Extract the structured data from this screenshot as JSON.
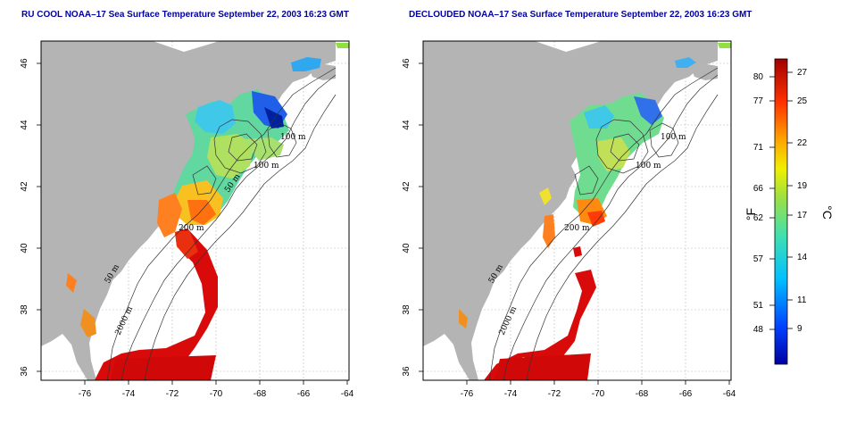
{
  "panels": [
    {
      "id": "left",
      "title": "RU COOL NOAA–17 Sea Surface Temperature September 22, 2003 16:23 GMT",
      "contour_labels": [
        "100 m",
        "100 m",
        "50 m",
        "200 m",
        "50 m",
        "2000 m"
      ]
    },
    {
      "id": "right",
      "title": "DECLOUDED NOAA–17 Sea Surface Temperature September 22, 2003 16:23 GMT",
      "contour_labels": [
        "100 m",
        "100 m",
        "200 m",
        "50 m",
        "2000 m"
      ]
    }
  ],
  "axes": {
    "x_ticks": [
      "-76",
      "-74",
      "-72",
      "-70",
      "-68",
      "-66",
      "-64"
    ],
    "y_ticks": [
      "36",
      "38",
      "40",
      "42",
      "44",
      "46"
    ]
  },
  "colorbar": {
    "fahrenheit_ticks": [
      "80",
      "77",
      "71",
      "66",
      "62",
      "57",
      "51",
      "48"
    ],
    "celsius_ticks": [
      "27",
      "25",
      "22",
      "19",
      "17",
      "14",
      "11",
      "9"
    ],
    "f_label": "°F",
    "c_label": "°C"
  },
  "colors": {
    "land": "#b4b4b4",
    "title": "#0000a0",
    "sst_cold": "#0000c8",
    "sst_warm": "#c80000"
  }
}
